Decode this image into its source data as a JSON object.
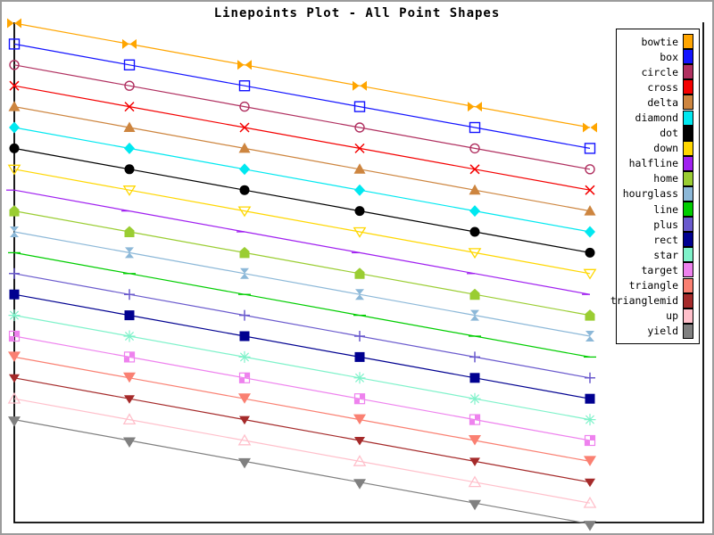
{
  "title": "Linepoints Plot - All Point Shapes",
  "chart_data": {
    "type": "line",
    "title": "Linepoints Plot - All Point Shapes",
    "xlabel": "",
    "ylabel": "",
    "xlim": [
      0,
      6
    ],
    "ylim": [
      -4,
      20
    ],
    "grid": false,
    "axis_ticks": "none (plain frame: left, bottom and right axis lines only, no tick labels)",
    "legend_position": "right",
    "x": [
      0,
      1,
      2,
      3,
      4,
      5
    ],
    "series": [
      {
        "name": "bowtie",
        "shape": "bowtie",
        "color": "#FFA500",
        "values": [
          20,
          19,
          18,
          17,
          16,
          15
        ]
      },
      {
        "name": "box",
        "shape": "box",
        "color": "#1414FF",
        "values": [
          19,
          18,
          17,
          16,
          15,
          14
        ]
      },
      {
        "name": "circle",
        "shape": "circle",
        "color": "#B03060",
        "values": [
          18,
          17,
          16,
          15,
          14,
          13
        ]
      },
      {
        "name": "cross",
        "shape": "cross",
        "color": "#F40000",
        "values": [
          17,
          16,
          15,
          14,
          13,
          12
        ]
      },
      {
        "name": "delta",
        "shape": "delta",
        "color": "#CD853F",
        "values": [
          16,
          15,
          14,
          13,
          12,
          11
        ]
      },
      {
        "name": "diamond",
        "shape": "diamond",
        "color": "#00E8F0",
        "values": [
          15,
          14,
          13,
          12,
          11,
          10
        ]
      },
      {
        "name": "dot",
        "shape": "dot",
        "color": "#000000",
        "values": [
          14,
          13,
          12,
          11,
          10,
          9
        ]
      },
      {
        "name": "down",
        "shape": "down",
        "color": "#FFD700",
        "values": [
          13,
          12,
          11,
          10,
          9,
          8
        ]
      },
      {
        "name": "halfline",
        "shape": "halfline",
        "color": "#A020F0",
        "values": [
          12,
          11,
          10,
          9,
          8,
          7
        ]
      },
      {
        "name": "home",
        "shape": "home",
        "color": "#9ACD32",
        "values": [
          11,
          10,
          9,
          8,
          7,
          6
        ]
      },
      {
        "name": "hourglass",
        "shape": "hourglass",
        "color": "#8CB8D8",
        "values": [
          10,
          9,
          8,
          7,
          6,
          5
        ]
      },
      {
        "name": "line",
        "shape": "line",
        "color": "#00CD00",
        "values": [
          9,
          8,
          7,
          6,
          5,
          4
        ]
      },
      {
        "name": "plus",
        "shape": "plus",
        "color": "#6A5ACD",
        "values": [
          8,
          7,
          6,
          5,
          4,
          3
        ]
      },
      {
        "name": "rect",
        "shape": "rect",
        "color": "#000090",
        "values": [
          7,
          6,
          5,
          4,
          3,
          2
        ]
      },
      {
        "name": "star",
        "shape": "star",
        "color": "#7FF2CA",
        "values": [
          6,
          5,
          4,
          3,
          2,
          1
        ]
      },
      {
        "name": "target",
        "shape": "target",
        "color": "#EE82EE",
        "values": [
          5,
          4,
          3,
          2,
          1,
          0
        ]
      },
      {
        "name": "triangle",
        "shape": "triangle",
        "color": "#FA8072",
        "values": [
          4,
          3,
          2,
          1,
          0,
          -1
        ]
      },
      {
        "name": "trianglemid",
        "shape": "trianglemid",
        "color": "#A52A2A",
        "values": [
          3,
          2,
          1,
          0,
          -1,
          -2
        ]
      },
      {
        "name": "up",
        "shape": "up",
        "color": "#FFC0CB",
        "values": [
          2,
          1,
          0,
          -1,
          -2,
          -3
        ]
      },
      {
        "name": "yield",
        "shape": "yield",
        "color": "#808080",
        "values": [
          1,
          0,
          -1,
          -2,
          -3,
          -4
        ]
      }
    ]
  },
  "legend": {
    "items": [
      {
        "label": "bowtie",
        "color": "#FFA500"
      },
      {
        "label": "box",
        "color": "#1414FF"
      },
      {
        "label": "circle",
        "color": "#B03060"
      },
      {
        "label": "cross",
        "color": "#F40000"
      },
      {
        "label": "delta",
        "color": "#CD853F"
      },
      {
        "label": "diamond",
        "color": "#00E8F0"
      },
      {
        "label": "dot",
        "color": "#000000"
      },
      {
        "label": "down",
        "color": "#FFD700"
      },
      {
        "label": "halfline",
        "color": "#A020F0"
      },
      {
        "label": "home",
        "color": "#9ACD32"
      },
      {
        "label": "hourglass",
        "color": "#8CB8D8"
      },
      {
        "label": "line",
        "color": "#00CD00"
      },
      {
        "label": "plus",
        "color": "#6A5ACD"
      },
      {
        "label": "rect",
        "color": "#000090"
      },
      {
        "label": "star",
        "color": "#7FF2CA"
      },
      {
        "label": "target",
        "color": "#EE82EE"
      },
      {
        "label": "triangle",
        "color": "#FA8072"
      },
      {
        "label": "trianglemid",
        "color": "#A52A2A"
      },
      {
        "label": "up",
        "color": "#FFC0CB"
      },
      {
        "label": "yield",
        "color": "#808080"
      }
    ]
  },
  "frame_color": "#000000",
  "border_color": "#9c9c9c"
}
